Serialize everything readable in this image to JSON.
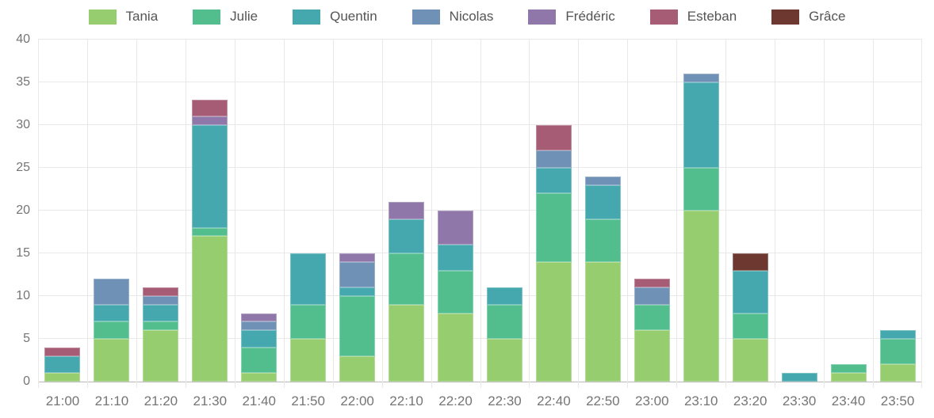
{
  "chart_data": {
    "type": "bar",
    "stacked": true,
    "title": "",
    "xlabel": "",
    "ylabel": "",
    "legend_position": "top",
    "grid": true,
    "ylim": [
      0,
      40
    ],
    "yticks": [
      0,
      5,
      10,
      15,
      20,
      25,
      30,
      35,
      40
    ],
    "categories": [
      "21:00",
      "21:10",
      "21:20",
      "21:30",
      "21:40",
      "21:50",
      "22:00",
      "22:10",
      "22:20",
      "22:30",
      "22:40",
      "22:50",
      "23:00",
      "23:10",
      "23:20",
      "23:30",
      "23:40",
      "23:50"
    ],
    "series": [
      {
        "name": "Tania",
        "color": "#96cd6e",
        "values": [
          1,
          5,
          6,
          17,
          1,
          5,
          3,
          9,
          8,
          5,
          14,
          14,
          6,
          20,
          5,
          0,
          1,
          2
        ]
      },
      {
        "name": "Julie",
        "color": "#52bd8d",
        "values": [
          0,
          2,
          1,
          1,
          3,
          4,
          7,
          6,
          5,
          4,
          8,
          5,
          3,
          5,
          3,
          0,
          1,
          3
        ]
      },
      {
        "name": "Quentin",
        "color": "#45a8af",
        "values": [
          2,
          2,
          2,
          12,
          2,
          6,
          1,
          4,
          3,
          2,
          3,
          4,
          0,
          10,
          5,
          1,
          0,
          1
        ]
      },
      {
        "name": "Nicolas",
        "color": "#6f91b5",
        "values": [
          0,
          3,
          1,
          0,
          1,
          0,
          3,
          0,
          0,
          0,
          2,
          1,
          2,
          1,
          0,
          0,
          0,
          0
        ]
      },
      {
        "name": "Frédéric",
        "color": "#8f77a9",
        "values": [
          0,
          0,
          0,
          1,
          1,
          0,
          1,
          2,
          4,
          0,
          0,
          0,
          0,
          0,
          0,
          0,
          0,
          0
        ]
      },
      {
        "name": "Esteban",
        "color": "#a55c74",
        "values": [
          1,
          0,
          1,
          2,
          0,
          0,
          0,
          0,
          0,
          0,
          3,
          0,
          1,
          0,
          0,
          0,
          0,
          0
        ]
      },
      {
        "name": "Grâce",
        "color": "#6c3830",
        "values": [
          0,
          0,
          0,
          0,
          0,
          0,
          0,
          0,
          0,
          0,
          0,
          0,
          0,
          0,
          2,
          0,
          0,
          0
        ]
      }
    ],
    "totals": [
      4,
      12,
      11,
      33,
      8,
      15,
      15,
      21,
      20,
      11,
      30,
      24,
      12,
      36,
      15,
      1,
      2,
      6
    ]
  }
}
